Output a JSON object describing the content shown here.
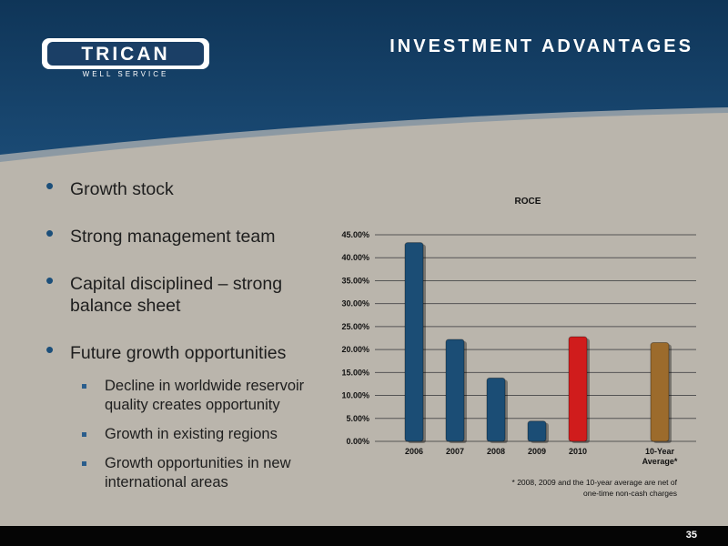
{
  "header": {
    "logo": "TRICAN",
    "logo_sub": "WELL SERVICE",
    "title": "INVESTMENT ADVANTAGES"
  },
  "bullets": [
    {
      "text": "Growth stock"
    },
    {
      "text": "Strong management team"
    },
    {
      "text": "Capital disciplined – strong balance sheet"
    },
    {
      "text": "Future growth opportunities",
      "sub": [
        "Decline in worldwide reservoir quality creates opportunity",
        "Growth in existing regions",
        "Growth opportunities in new international areas"
      ]
    }
  ],
  "chart_data": {
    "type": "bar",
    "title": "ROCE",
    "categories": [
      "2006",
      "2007",
      "2008",
      "2009",
      "2010",
      null,
      "10-Year Average*"
    ],
    "values": [
      43.3,
      22.2,
      13.8,
      4.4,
      22.8,
      null,
      21.5
    ],
    "colors": [
      "#1b4d75",
      "#1b4d75",
      "#1b4d75",
      "#1b4d75",
      "#d01c1c",
      null,
      "#9c6b2c"
    ],
    "ylim": [
      0,
      45
    ],
    "yticks": [
      {
        "value": 0,
        "label": "0.00%"
      },
      {
        "value": 5,
        "label": "5.00%"
      },
      {
        "value": 10,
        "label": "10.00%"
      },
      {
        "value": 15,
        "label": "15.00%"
      },
      {
        "value": 20,
        "label": "20.00%"
      },
      {
        "value": 25,
        "label": "25.00%"
      },
      {
        "value": 30,
        "label": "30.00%"
      },
      {
        "value": 35,
        "label": "35.00%"
      },
      {
        "value": 40,
        "label": "40.00%"
      },
      {
        "value": 45,
        "label": "45.00%"
      }
    ],
    "grid": true,
    "footnote": "* 2008, 2009 and the 10-year average are net of one-time non-cash charges"
  },
  "page_number": "35"
}
